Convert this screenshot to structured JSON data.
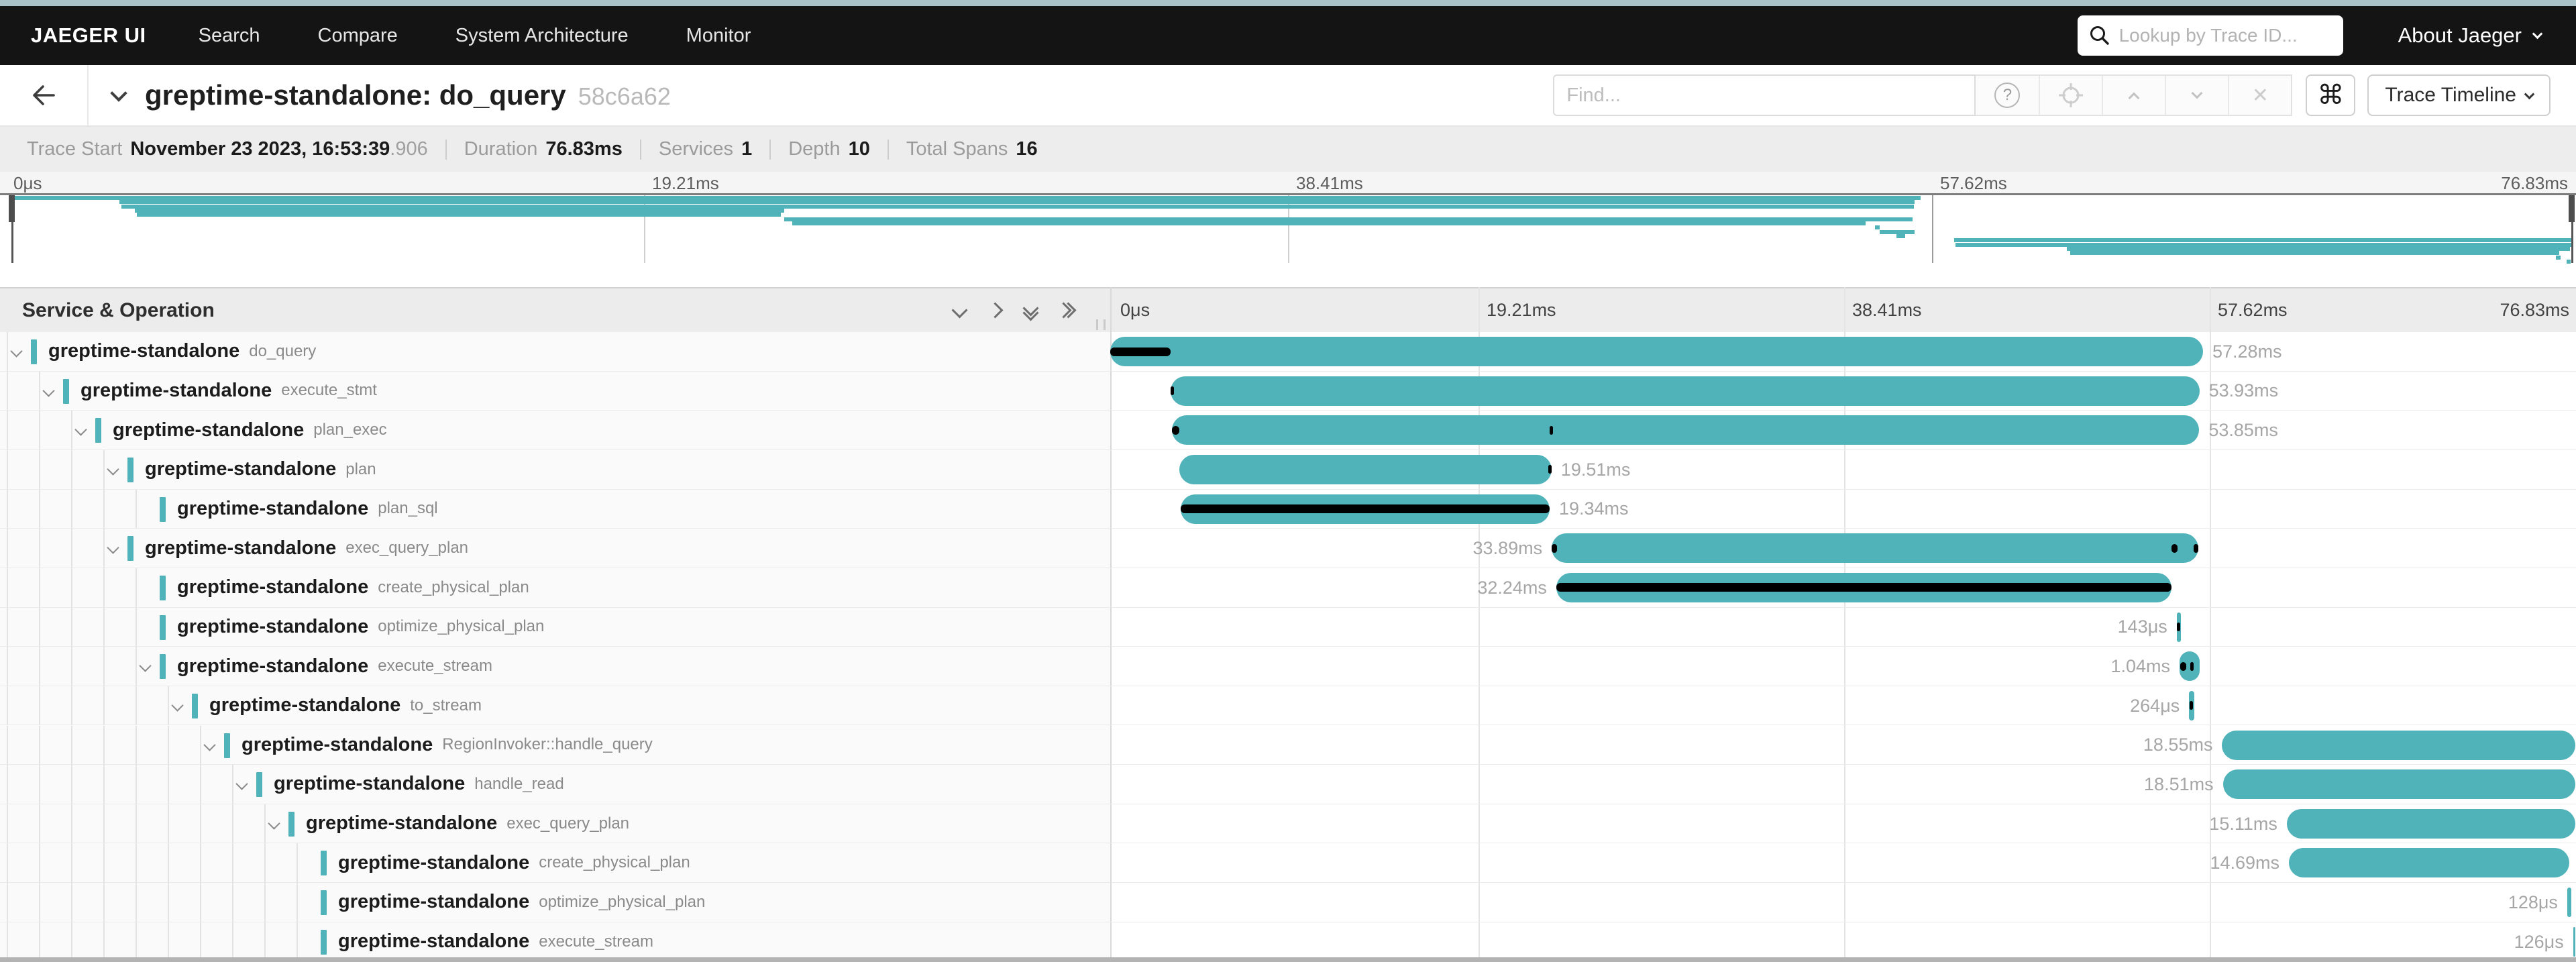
{
  "colors": {
    "span_teal": "#4fb3b9",
    "critical_path_black": "#000000",
    "nav_bg": "#141414",
    "top_strip": "#a9c2c8"
  },
  "nav": {
    "brand": "JAEGER UI",
    "items": [
      "Search",
      "Compare",
      "System Architecture",
      "Monitor"
    ],
    "lookup_placeholder": "Lookup by Trace ID...",
    "about_label": "About Jaeger"
  },
  "titlebar": {
    "title": "greptime-standalone: do_query",
    "trace_id_short": "58c6a62",
    "find_placeholder": "Find...",
    "help_glyph": "?",
    "clear_glyph": "✕",
    "command_glyph": "⌘",
    "view_selector_label": "Trace Timeline"
  },
  "trace_info": {
    "trace_start_label": "Trace Start",
    "trace_start_value": "November 23 2023, 16:53:39",
    "trace_start_fraction": ".906",
    "duration_label": "Duration",
    "duration_value": "76.83ms",
    "services_label": "Services",
    "services_value": "1",
    "depth_label": "Depth",
    "depth_value": "10",
    "total_spans_label": "Total Spans",
    "total_spans_value": "16"
  },
  "minimap": {
    "ticks": [
      "0μs",
      "19.21ms",
      "38.41ms",
      "57.62ms",
      "76.83ms"
    ]
  },
  "timeline_header": {
    "left_title": "Service & Operation",
    "ticks": [
      "0μs",
      "19.21ms",
      "38.41ms",
      "57.62ms",
      "76.83ms"
    ]
  },
  "trace": {
    "total_ms": 76.83,
    "spans": [
      {
        "service": "greptime-standalone",
        "operation": "do_query",
        "duration_label": "57.28ms",
        "start_ms": 0,
        "duration_ms": 57.28,
        "depth": 0,
        "expandable": true,
        "label_side": "right",
        "critical": [
          [
            0,
            3.16
          ]
        ]
      },
      {
        "service": "greptime-standalone",
        "operation": "execute_stmt",
        "duration_label": "53.93ms",
        "start_ms": 3.16,
        "duration_ms": 53.93,
        "depth": 1,
        "expandable": true,
        "label_side": "right",
        "critical": [
          [
            3.16,
            3.34
          ]
        ]
      },
      {
        "service": "greptime-standalone",
        "operation": "plan_exec",
        "duration_label": "53.85ms",
        "start_ms": 3.23,
        "duration_ms": 53.85,
        "depth": 2,
        "expandable": true,
        "label_side": "right",
        "critical": [
          [
            3.25,
            3.62
          ],
          [
            23.03,
            23.16
          ]
        ]
      },
      {
        "service": "greptime-standalone",
        "operation": "plan",
        "duration_label": "19.51ms",
        "start_ms": 3.62,
        "duration_ms": 19.51,
        "depth": 3,
        "expandable": true,
        "label_side": "right",
        "critical": [
          [
            22.97,
            23.13
          ]
        ]
      },
      {
        "service": "greptime-standalone",
        "operation": "plan_sql",
        "duration_label": "19.34ms",
        "start_ms": 3.69,
        "duration_ms": 19.34,
        "depth": 4,
        "expandable": false,
        "label_side": "right",
        "critical": [
          [
            3.69,
            23.03
          ]
        ]
      },
      {
        "service": "greptime-standalone",
        "operation": "exec_query_plan",
        "duration_label": "33.89ms",
        "start_ms": 23.14,
        "duration_ms": 33.89,
        "depth": 3,
        "expandable": true,
        "label_side": "left",
        "critical": [
          [
            23.14,
            23.42
          ],
          [
            55.62,
            55.95
          ],
          [
            56.78,
            57.03
          ]
        ]
      },
      {
        "service": "greptime-standalone",
        "operation": "create_physical_plan",
        "duration_label": "32.24ms",
        "start_ms": 23.38,
        "duration_ms": 32.24,
        "depth": 4,
        "expandable": false,
        "label_side": "left",
        "critical": [
          [
            23.38,
            55.62
          ]
        ]
      },
      {
        "service": "greptime-standalone",
        "operation": "optimize_physical_plan",
        "duration_label": "143μs",
        "start_ms": 55.9,
        "duration_ms": 0.143,
        "depth": 4,
        "expandable": false,
        "label_side": "left",
        "critical": [
          [
            55.9,
            55.99
          ]
        ]
      },
      {
        "service": "greptime-standalone",
        "operation": "execute_stream",
        "duration_label": "1.04ms",
        "start_ms": 56.05,
        "duration_ms": 1.04,
        "depth": 4,
        "expandable": true,
        "label_side": "left",
        "critical": [
          [
            56.08,
            56.4
          ],
          [
            56.62,
            56.76
          ]
        ]
      },
      {
        "service": "greptime-standalone",
        "operation": "to_stream",
        "duration_label": "264μs",
        "start_ms": 56.55,
        "duration_ms": 0.264,
        "depth": 5,
        "expandable": true,
        "label_side": "left",
        "critical": [
          [
            56.58,
            56.74
          ]
        ]
      },
      {
        "service": "greptime-standalone",
        "operation": "RegionInvoker::handle_query",
        "duration_label": "18.55ms",
        "start_ms": 58.28,
        "duration_ms": 18.55,
        "depth": 6,
        "expandable": true,
        "label_side": "left",
        "critical": []
      },
      {
        "service": "greptime-standalone",
        "operation": "handle_read",
        "duration_label": "18.51ms",
        "start_ms": 58.32,
        "duration_ms": 18.51,
        "depth": 7,
        "expandable": true,
        "label_side": "left",
        "critical": []
      },
      {
        "service": "greptime-standalone",
        "operation": "exec_query_plan",
        "duration_label": "15.11ms",
        "start_ms": 61.67,
        "duration_ms": 15.11,
        "depth": 8,
        "expandable": true,
        "label_side": "left",
        "critical": []
      },
      {
        "service": "greptime-standalone",
        "operation": "create_physical_plan",
        "duration_label": "14.69ms",
        "start_ms": 61.78,
        "duration_ms": 14.69,
        "depth": 9,
        "expandable": false,
        "label_side": "left",
        "critical": []
      },
      {
        "service": "greptime-standalone",
        "operation": "optimize_physical_plan",
        "duration_label": "128μs",
        "start_ms": 76.37,
        "duration_ms": 0.128,
        "depth": 9,
        "expandable": false,
        "label_side": "left",
        "critical": []
      },
      {
        "service": "greptime-standalone",
        "operation": "execute_stream",
        "duration_label": "126μs",
        "start_ms": 76.68,
        "duration_ms": 0.126,
        "depth": 9,
        "expandable": false,
        "label_side": "left",
        "critical": []
      }
    ]
  }
}
